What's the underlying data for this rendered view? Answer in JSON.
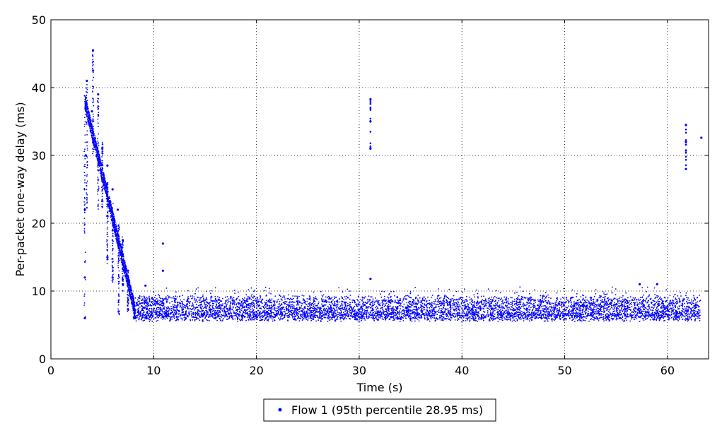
{
  "chart_data": {
    "type": "scatter",
    "xlabel": "Time (s)",
    "ylabel": "Per-packet one-way delay (ms)",
    "xlim": [
      0,
      64
    ],
    "ylim": [
      0,
      50
    ],
    "x_ticks": [
      0,
      10,
      20,
      30,
      40,
      50,
      60
    ],
    "y_ticks": [
      0,
      10,
      20,
      30,
      40,
      50
    ],
    "grid": true,
    "legend_position": "bottom-center",
    "series": [
      {
        "name": "Flow 1 (95th percentile 28.95 ms)",
        "color": "#0000ff",
        "time_range_s": [
          3.2,
          63.2
        ],
        "baseline_delay_ms": [
          5.5,
          9.5
        ],
        "points": [
          {
            "x": 3.3,
            "y": 6.0
          },
          {
            "x": 3.3,
            "y": 12.0
          },
          {
            "x": 3.3,
            "y": 22.0
          },
          {
            "x": 3.4,
            "y": 30.0
          },
          {
            "x": 3.4,
            "y": 38.5
          },
          {
            "x": 3.5,
            "y": 41.0
          },
          {
            "x": 4.0,
            "y": 36.5
          },
          {
            "x": 4.1,
            "y": 45.5
          },
          {
            "x": 4.1,
            "y": 42.5
          },
          {
            "x": 4.6,
            "y": 39.0
          },
          {
            "x": 5.0,
            "y": 31.0
          },
          {
            "x": 5.5,
            "y": 28.5
          },
          {
            "x": 5.5,
            "y": 15.0
          },
          {
            "x": 6.0,
            "y": 25.0
          },
          {
            "x": 6.0,
            "y": 12.0
          },
          {
            "x": 6.5,
            "y": 22.0
          },
          {
            "x": 6.6,
            "y": 7.0
          },
          {
            "x": 7.0,
            "y": 17.5
          },
          {
            "x": 7.0,
            "y": 11.0
          },
          {
            "x": 7.5,
            "y": 13.0
          },
          {
            "x": 7.8,
            "y": 9.0
          },
          {
            "x": 8.2,
            "y": 6.0
          },
          {
            "x": 9.2,
            "y": 10.8
          },
          {
            "x": 10.9,
            "y": 17.0
          },
          {
            "x": 10.9,
            "y": 13.0
          },
          {
            "x": 31.1,
            "y": 38.3
          },
          {
            "x": 31.1,
            "y": 35.0
          },
          {
            "x": 31.1,
            "y": 31.0
          },
          {
            "x": 31.1,
            "y": 11.8
          },
          {
            "x": 57.3,
            "y": 11.0
          },
          {
            "x": 59.0,
            "y": 11.0
          },
          {
            "x": 61.8,
            "y": 34.5
          },
          {
            "x": 61.8,
            "y": 32.0
          },
          {
            "x": 61.8,
            "y": 28.0
          },
          {
            "x": 63.3,
            "y": 32.6
          }
        ]
      }
    ]
  }
}
